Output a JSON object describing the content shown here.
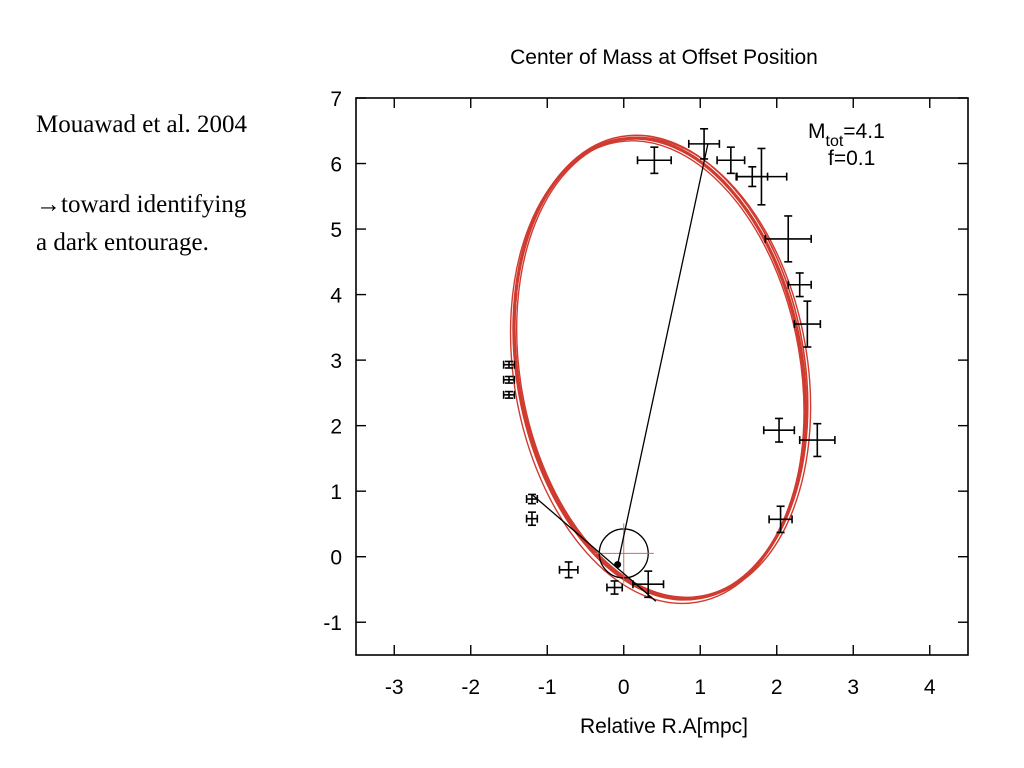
{
  "slide": {
    "citation": "Mouawad et al. 2004",
    "note_arrow": "→",
    "note_line1": "toward identifying",
    "note_line2": "a dark entourage."
  },
  "colors": {
    "orbit": "#d03b30",
    "marker": "#000000",
    "center_marker": "#c07060"
  },
  "chart_data": {
    "type": "scatter",
    "title": "Center of Mass at Offset Position",
    "xlabel": "Relative R.A[mpc]",
    "ylabel": "",
    "xlim": [
      -3.5,
      4.5
    ],
    "ylim": [
      -1.5,
      7
    ],
    "xticks": [
      "-3",
      "-2",
      "-1",
      "0",
      "1",
      "2",
      "3",
      "4"
    ],
    "yticks": [
      "-1",
      "0",
      "1",
      "2",
      "3",
      "4",
      "5",
      "6",
      "7"
    ],
    "grid": false,
    "annotation": {
      "mass_prefix": "M",
      "mass_subscript": "tot",
      "mass_value": "=4.1",
      "f_label": "f=0.1"
    },
    "orbit_fit": {
      "center": [
        0.47,
        2.87
      ],
      "semi_axis_x": 1.86,
      "semi_axis_y": 3.55,
      "rotation_deg": -10
    },
    "points": [
      {
        "x": 0.4,
        "y": 6.05,
        "xerr": 0.22,
        "yerr": 0.2
      },
      {
        "x": 1.05,
        "y": 6.3,
        "xerr": 0.2,
        "yerr": 0.23
      },
      {
        "x": 1.4,
        "y": 6.05,
        "xerr": 0.18,
        "yerr": 0.2
      },
      {
        "x": 1.68,
        "y": 5.8,
        "xerr": 0.2,
        "yerr": 0.15
      },
      {
        "x": 1.8,
        "y": 5.8,
        "xerr": 0.33,
        "yerr": 0.43
      },
      {
        "x": 2.15,
        "y": 4.85,
        "xerr": 0.3,
        "yerr": 0.35
      },
      {
        "x": 2.3,
        "y": 4.15,
        "xerr": 0.15,
        "yerr": 0.18
      },
      {
        "x": 2.4,
        "y": 3.55,
        "xerr": 0.17,
        "yerr": 0.35
      },
      {
        "x": 2.03,
        "y": 1.93,
        "xerr": 0.2,
        "yerr": 0.18
      },
      {
        "x": 2.53,
        "y": 1.78,
        "xerr": 0.23,
        "yerr": 0.25
      },
      {
        "x": 2.05,
        "y": 0.57,
        "xerr": 0.15,
        "yerr": 0.2
      },
      {
        "x": -1.5,
        "y": 2.93,
        "xerr": 0.07,
        "yerr": 0.05
      },
      {
        "x": -1.5,
        "y": 2.7,
        "xerr": 0.07,
        "yerr": 0.05
      },
      {
        "x": -1.5,
        "y": 2.47,
        "xerr": 0.07,
        "yerr": 0.05
      },
      {
        "x": -1.2,
        "y": 0.88,
        "xerr": 0.07,
        "yerr": 0.07
      },
      {
        "x": -1.2,
        "y": 0.58,
        "xerr": 0.07,
        "yerr": 0.1
      },
      {
        "x": -0.72,
        "y": -0.2,
        "xerr": 0.12,
        "yerr": 0.12
      },
      {
        "x": -0.12,
        "y": -0.47,
        "xerr": 0.1,
        "yerr": 0.1
      },
      {
        "x": 0.32,
        "y": -0.42,
        "xerr": 0.2,
        "yerr": 0.2
      }
    ],
    "center_of_mass": {
      "x": -0.08,
      "y": -0.12
    },
    "central_circle": {
      "x": 0.0,
      "y": 0.05,
      "radius": 0.32
    },
    "connector_lines": [
      {
        "from": [
          -0.08,
          -0.12
        ],
        "to": [
          1.1,
          6.3
        ]
      },
      {
        "from": [
          -1.2,
          0.95
        ],
        "to": [
          0.42,
          -0.68
        ]
      }
    ]
  }
}
